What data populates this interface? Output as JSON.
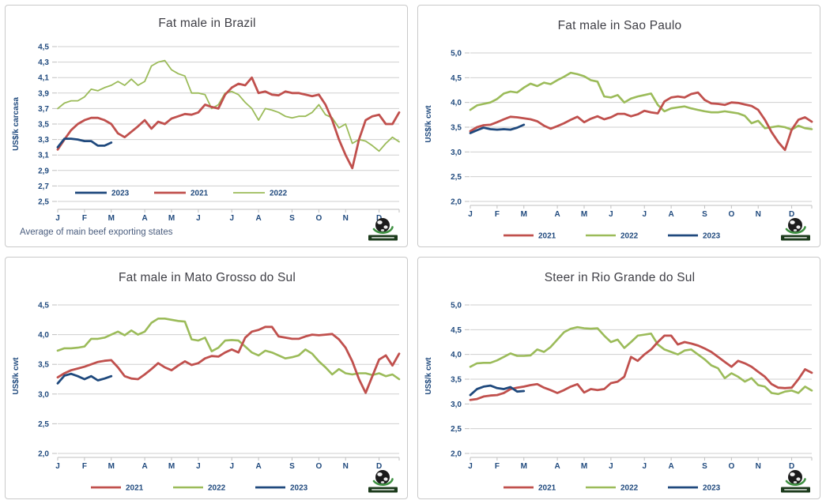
{
  "months": [
    "J",
    "F",
    "M",
    "A",
    "M",
    "J",
    "J",
    "A",
    "S",
    "O",
    "N",
    "D"
  ],
  "colors": {
    "series_2021": "#C0504D",
    "series_2022": "#9BBB59",
    "series_2023": "#1F497D",
    "grid": "#CFCFCF",
    "axis": "#BFBFBF",
    "tick_text": "#1F497D",
    "title_text": "#3F3F46",
    "footnote_text": "#4A5D7E",
    "panel_border": "#C9C9C9",
    "background": "#FFFFFF",
    "logo_banner": "#1C3B1C",
    "logo_swoosh": "#3F9142",
    "logo_globe": "#1B1B1B"
  },
  "logo": {
    "icon": "globe-logo"
  },
  "chart_data": [
    {
      "type": "line",
      "title": "Fat male in Brazil",
      "ylabel": "US$/k carcasa",
      "xlabel": "",
      "x_tick_labels": [
        "J",
        "F",
        "M",
        "A",
        "M",
        "J",
        "J",
        "A",
        "S",
        "O",
        "N",
        "D"
      ],
      "yticks": [
        2.5,
        2.7,
        2.9,
        3.1,
        3.3,
        3.5,
        3.7,
        3.9,
        4.1,
        4.3,
        4.5
      ],
      "ylim": [
        2.5,
        4.5
      ],
      "grid": true,
      "decimal_separator": ",",
      "footnote": "Average  of main  beef  exporting  states",
      "legend_position": "inside-left",
      "legend": [
        "2023",
        "2021",
        "2022"
      ],
      "series": [
        {
          "name": "2021",
          "color": "#C0504D",
          "width": 2.8,
          "values": [
            3.17,
            3.3,
            3.42,
            3.5,
            3.55,
            3.58,
            3.58,
            3.55,
            3.5,
            3.38,
            3.33,
            3.4,
            3.47,
            3.55,
            3.44,
            3.53,
            3.5,
            3.57,
            3.6,
            3.63,
            3.62,
            3.65,
            3.75,
            3.72,
            3.7,
            3.88,
            3.97,
            4.02,
            4.0,
            4.1,
            3.9,
            3.92,
            3.88,
            3.87,
            3.92,
            3.9,
            3.9,
            3.88,
            3.86,
            3.88,
            3.75,
            3.55,
            3.3,
            3.1,
            2.93,
            3.3,
            3.55,
            3.6,
            3.62,
            3.5,
            3.5,
            3.65
          ]
        },
        {
          "name": "2022",
          "color": "#9BBB59",
          "width": 1.8,
          "values": [
            3.7,
            3.77,
            3.8,
            3.8,
            3.85,
            3.95,
            3.93,
            3.97,
            4.0,
            4.05,
            4.0,
            4.08,
            4.0,
            4.05,
            4.25,
            4.3,
            4.32,
            4.2,
            4.15,
            4.12,
            3.9,
            3.9,
            3.88,
            3.7,
            3.75,
            3.9,
            3.92,
            3.88,
            3.78,
            3.7,
            3.55,
            3.7,
            3.68,
            3.65,
            3.6,
            3.58,
            3.6,
            3.6,
            3.65,
            3.75,
            3.62,
            3.58,
            3.45,
            3.5,
            3.25,
            3.3,
            3.28,
            3.22,
            3.15,
            3.25,
            3.33,
            3.27
          ]
        },
        {
          "name": "2023",
          "color": "#1F497D",
          "width": 2.8,
          "values": [
            3.2,
            3.31,
            3.31,
            3.3,
            3.28,
            3.28,
            3.22,
            3.22,
            3.26
          ]
        }
      ]
    },
    {
      "type": "line",
      "title": "Fat male in Sao Paulo",
      "ylabel": "US$/k cwt",
      "xlabel": "",
      "x_tick_labels": [
        "J",
        "F",
        "M",
        "A",
        "M",
        "J",
        "J",
        "A",
        "S",
        "O",
        "N",
        "D"
      ],
      "yticks": [
        2.0,
        2.5,
        3.0,
        3.5,
        4.0,
        4.5,
        5.0
      ],
      "ylim": [
        2.0,
        5.0
      ],
      "grid": true,
      "decimal_separator": ",",
      "legend_position": "bottom",
      "legend": [
        "2021",
        "2022",
        "2023"
      ],
      "series": [
        {
          "name": "2021",
          "color": "#C0504D",
          "width": 2.8,
          "values": [
            3.42,
            3.5,
            3.54,
            3.55,
            3.6,
            3.66,
            3.71,
            3.7,
            3.68,
            3.66,
            3.62,
            3.53,
            3.47,
            3.52,
            3.58,
            3.65,
            3.71,
            3.6,
            3.67,
            3.72,
            3.66,
            3.7,
            3.77,
            3.77,
            3.72,
            3.76,
            3.83,
            3.8,
            3.78,
            4.02,
            4.1,
            4.12,
            4.1,
            4.17,
            4.2,
            4.05,
            3.98,
            3.97,
            3.95,
            4.0,
            3.99,
            3.96,
            3.93,
            3.85,
            3.65,
            3.4,
            3.2,
            3.04,
            3.45,
            3.65,
            3.7,
            3.61
          ]
        },
        {
          "name": "2022",
          "color": "#9BBB59",
          "width": 2.6,
          "values": [
            3.85,
            3.94,
            3.97,
            4.0,
            4.07,
            4.18,
            4.22,
            4.2,
            4.3,
            4.38,
            4.33,
            4.4,
            4.37,
            4.45,
            4.52,
            4.6,
            4.57,
            4.53,
            4.45,
            4.42,
            4.12,
            4.1,
            4.15,
            4.0,
            4.08,
            4.12,
            4.15,
            4.18,
            3.95,
            3.82,
            3.88,
            3.9,
            3.92,
            3.88,
            3.85,
            3.82,
            3.8,
            3.8,
            3.82,
            3.8,
            3.78,
            3.73,
            3.58,
            3.63,
            3.48,
            3.5,
            3.52,
            3.5,
            3.45,
            3.53,
            3.48,
            3.46
          ]
        },
        {
          "name": "2023",
          "color": "#1F497D",
          "width": 2.8,
          "values": [
            3.38,
            3.44,
            3.49,
            3.46,
            3.45,
            3.46,
            3.45,
            3.49,
            3.55
          ]
        }
      ]
    },
    {
      "type": "line",
      "title": "Fat male in Mato Grosso do Sul",
      "ylabel": "US$/k cwt",
      "xlabel": "",
      "x_tick_labels": [
        "J",
        "F",
        "M",
        "A",
        "M",
        "J",
        "J",
        "A",
        "S",
        "O",
        "N",
        "D"
      ],
      "yticks": [
        2.0,
        2.5,
        3.0,
        3.5,
        4.0,
        4.5
      ],
      "ylim": [
        2.0,
        4.5
      ],
      "grid": true,
      "decimal_separator": ",",
      "legend_position": "bottom",
      "legend": [
        "2021",
        "2022",
        "2023"
      ],
      "series": [
        {
          "name": "2021",
          "color": "#C0504D",
          "width": 2.8,
          "values": [
            3.28,
            3.35,
            3.4,
            3.43,
            3.46,
            3.5,
            3.54,
            3.56,
            3.57,
            3.45,
            3.3,
            3.26,
            3.25,
            3.33,
            3.42,
            3.52,
            3.45,
            3.4,
            3.48,
            3.55,
            3.49,
            3.52,
            3.6,
            3.64,
            3.63,
            3.7,
            3.75,
            3.7,
            3.95,
            4.05,
            4.08,
            4.13,
            4.13,
            3.97,
            3.95,
            3.93,
            3.93,
            3.97,
            4.0,
            3.99,
            4.0,
            4.01,
            3.92,
            3.78,
            3.55,
            3.25,
            3.02,
            3.3,
            3.58,
            3.65,
            3.48,
            3.68
          ]
        },
        {
          "name": "2022",
          "color": "#9BBB59",
          "width": 2.6,
          "values": [
            3.73,
            3.77,
            3.77,
            3.78,
            3.8,
            3.93,
            3.93,
            3.95,
            4.0,
            4.05,
            3.99,
            4.07,
            4.0,
            4.05,
            4.2,
            4.27,
            4.27,
            4.25,
            4.23,
            4.22,
            3.92,
            3.9,
            3.95,
            3.72,
            3.78,
            3.9,
            3.91,
            3.9,
            3.8,
            3.7,
            3.65,
            3.73,
            3.7,
            3.65,
            3.6,
            3.62,
            3.65,
            3.75,
            3.68,
            3.55,
            3.45,
            3.33,
            3.42,
            3.35,
            3.33,
            3.35,
            3.35,
            3.32,
            3.35,
            3.3,
            3.33,
            3.25
          ]
        },
        {
          "name": "2023",
          "color": "#1F497D",
          "width": 2.8,
          "values": [
            3.18,
            3.31,
            3.34,
            3.3,
            3.25,
            3.3,
            3.23,
            3.26,
            3.3
          ]
        }
      ]
    },
    {
      "type": "line",
      "title": "Steer  in Rio Grande do Sul",
      "ylabel": "US$/k cwt",
      "xlabel": "",
      "x_tick_labels": [
        "J",
        "F",
        "M",
        "A",
        "M",
        "J",
        "J",
        "A",
        "S",
        "O",
        "N",
        "D"
      ],
      "yticks": [
        2.0,
        2.5,
        3.0,
        3.5,
        4.0,
        4.5,
        5.0
      ],
      "ylim": [
        2.0,
        5.0
      ],
      "grid": true,
      "decimal_separator": ",",
      "legend_position": "bottom",
      "legend": [
        "2021",
        "2022",
        "2023"
      ],
      "series": [
        {
          "name": "2021",
          "color": "#C0504D",
          "width": 2.8,
          "values": [
            3.08,
            3.1,
            3.15,
            3.17,
            3.18,
            3.22,
            3.3,
            3.33,
            3.35,
            3.38,
            3.4,
            3.33,
            3.28,
            3.22,
            3.28,
            3.35,
            3.4,
            3.23,
            3.3,
            3.28,
            3.3,
            3.42,
            3.45,
            3.55,
            3.95,
            3.87,
            4.0,
            4.1,
            4.25,
            4.38,
            4.38,
            4.2,
            4.25,
            4.22,
            4.18,
            4.12,
            4.05,
            3.95,
            3.85,
            3.75,
            3.87,
            3.82,
            3.75,
            3.65,
            3.55,
            3.4,
            3.33,
            3.32,
            3.33,
            3.5,
            3.7,
            3.63
          ]
        },
        {
          "name": "2022",
          "color": "#9BBB59",
          "width": 2.6,
          "values": [
            3.75,
            3.82,
            3.83,
            3.83,
            3.88,
            3.95,
            4.02,
            3.97,
            3.97,
            3.98,
            4.1,
            4.05,
            4.15,
            4.3,
            4.45,
            4.52,
            4.55,
            4.53,
            4.52,
            4.53,
            4.38,
            4.25,
            4.3,
            4.13,
            4.25,
            4.38,
            4.4,
            4.42,
            4.2,
            4.1,
            4.05,
            4.0,
            4.08,
            4.1,
            4.0,
            3.9,
            3.78,
            3.72,
            3.52,
            3.62,
            3.55,
            3.45,
            3.52,
            3.38,
            3.35,
            3.22,
            3.2,
            3.25,
            3.27,
            3.22,
            3.35,
            3.27
          ]
        },
        {
          "name": "2023",
          "color": "#1F497D",
          "width": 2.8,
          "values": [
            3.18,
            3.3,
            3.35,
            3.37,
            3.32,
            3.3,
            3.34,
            3.25,
            3.26
          ]
        }
      ]
    }
  ]
}
